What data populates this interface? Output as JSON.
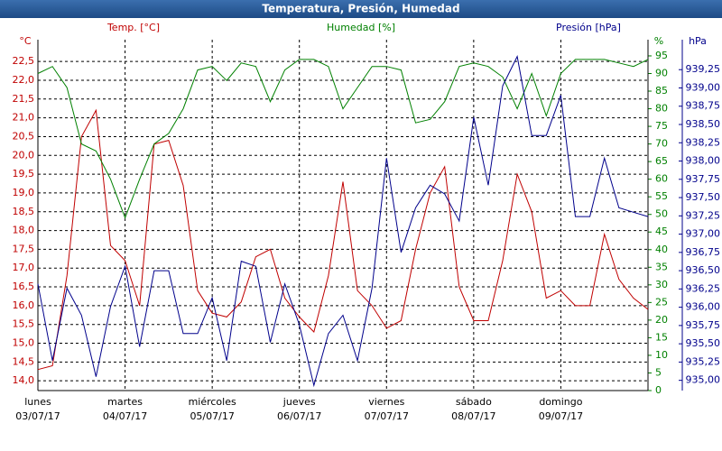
{
  "chart_data": {
    "type": "line",
    "title": "Temperatura, Presión, Humedad",
    "y_unit": "°C",
    "y_label": "Temp. [°C]",
    "y2_unit": "%",
    "y2_label": "Humedad [%]",
    "y3_unit": "hPa",
    "y3_label": "Presión [hPa]",
    "x": [
      0,
      4,
      8,
      12,
      16,
      20,
      24,
      28,
      32,
      36,
      40,
      44,
      48,
      52,
      56,
      60,
      64,
      68,
      72,
      76,
      80,
      84,
      88,
      92,
      96,
      100,
      104,
      108,
      112,
      116,
      120,
      124,
      128,
      132,
      136,
      140,
      144,
      148,
      152,
      156,
      160,
      164,
      168
    ],
    "xlim": [
      0,
      168
    ],
    "xticks": [
      {
        "value": 0,
        "label": "lunes"
      },
      {
        "value": 24,
        "label": "martes"
      },
      {
        "value": 48,
        "label": "miércoles"
      },
      {
        "value": 72,
        "label": "jueves"
      },
      {
        "value": 96,
        "label": "viernes"
      },
      {
        "value": 120,
        "label": "sábado"
      },
      {
        "value": 144,
        "label": "domingo"
      }
    ],
    "xtick_dates": [
      "03/07/17",
      "04/07/17",
      "05/07/17",
      "06/07/17",
      "07/07/17",
      "08/07/17",
      "09/07/17"
    ],
    "ylim": [
      13.74,
      23.08
    ],
    "yticks": [
      {
        "value": 14,
        "label": "14,0"
      },
      {
        "value": 14.5,
        "label": "14,5"
      },
      {
        "value": 15,
        "label": "15,0"
      },
      {
        "value": 15.5,
        "label": "15,5"
      },
      {
        "value": 16,
        "label": "16,0"
      },
      {
        "value": 16.5,
        "label": "16,5"
      },
      {
        "value": 17,
        "label": "17,0"
      },
      {
        "value": 17.5,
        "label": "17,5"
      },
      {
        "value": 18,
        "label": "18,0"
      },
      {
        "value": 18.5,
        "label": "18,5"
      },
      {
        "value": 19,
        "label": "19,0"
      },
      {
        "value": 19.5,
        "label": "19,5"
      },
      {
        "value": 20,
        "label": "20,0"
      },
      {
        "value": 20.5,
        "label": "20,5"
      },
      {
        "value": 21,
        "label": "21,0"
      },
      {
        "value": 21.5,
        "label": "21,5"
      },
      {
        "value": 22,
        "label": "22,0"
      },
      {
        "value": 22.5,
        "label": "22,5"
      }
    ],
    "y2lim": [
      0,
      99.6
    ],
    "y2ticks": [
      0,
      5,
      10,
      15,
      20,
      25,
      30,
      35,
      40,
      45,
      50,
      55,
      60,
      65,
      70,
      75,
      80,
      85,
      90,
      95
    ],
    "y3lim": [
      934.86,
      939.66
    ],
    "y3ticks": [
      {
        "value": 935,
        "label": "935,00"
      },
      {
        "value": 935.25,
        "label": "935,25"
      },
      {
        "value": 935.5,
        "label": "935,50"
      },
      {
        "value": 935.75,
        "label": "935,75"
      },
      {
        "value": 936,
        "label": "936,00"
      },
      {
        "value": 936.25,
        "label": "936,25"
      },
      {
        "value": 936.5,
        "label": "936,50"
      },
      {
        "value": 936.75,
        "label": "936,75"
      },
      {
        "value": 937,
        "label": "937,00"
      },
      {
        "value": 937.25,
        "label": "937,25"
      },
      {
        "value": 937.5,
        "label": "937,50"
      },
      {
        "value": 937.75,
        "label": "937,75"
      },
      {
        "value": 938,
        "label": "938,00"
      },
      {
        "value": 938.25,
        "label": "938,25"
      },
      {
        "value": 938.5,
        "label": "938,50"
      },
      {
        "value": 938.75,
        "label": "938,75"
      },
      {
        "value": 939,
        "label": "939,00"
      },
      {
        "value": 939.25,
        "label": "939,25"
      }
    ],
    "grid": true,
    "series": [
      {
        "name": "Temp.",
        "axis": "y",
        "color": "#c00000",
        "values": [
          14.3,
          14.4,
          16.8,
          20.5,
          21.2,
          17.6,
          17.2,
          16.0,
          20.3,
          20.4,
          19.2,
          16.4,
          15.8,
          15.7,
          16.1,
          17.3,
          17.5,
          16.2,
          15.7,
          15.3,
          16.8,
          19.3,
          16.4,
          16.0,
          15.4,
          15.6,
          17.5,
          19.0,
          19.7,
          16.5,
          15.6,
          15.6,
          17.2,
          19.5,
          18.5,
          16.2,
          16.4,
          16.0,
          16.0,
          17.9,
          16.7,
          16.2,
          15.9
        ]
      },
      {
        "name": "Humedad",
        "axis": "y2",
        "color": "#008000",
        "values": [
          90,
          92,
          86,
          70,
          68,
          60,
          49,
          60,
          70,
          73,
          80,
          91,
          92,
          88,
          93,
          92,
          82,
          91,
          94,
          94,
          92,
          80,
          86,
          92,
          92,
          91,
          76,
          77,
          82,
          92,
          93,
          92,
          89,
          80,
          90,
          78,
          90,
          94,
          94,
          94,
          93,
          92,
          94
        ]
      },
      {
        "name": "Presión",
        "axis": "y3",
        "color": "#00008b",
        "values": [
          936.32,
          935.27,
          936.26,
          935.89,
          935.05,
          936.01,
          936.56,
          935.46,
          936.5,
          936.5,
          935.64,
          935.64,
          936.13,
          935.27,
          936.63,
          936.56,
          935.52,
          936.32,
          935.76,
          934.93,
          935.64,
          935.89,
          935.27,
          936.26,
          938.04,
          936.75,
          937.36,
          937.67,
          937.55,
          937.18,
          938.6,
          937.67,
          939.03,
          939.43,
          938.35,
          938.35,
          938.9,
          937.24,
          937.24,
          938.04,
          937.36,
          937.3,
          937.24
        ]
      }
    ]
  }
}
